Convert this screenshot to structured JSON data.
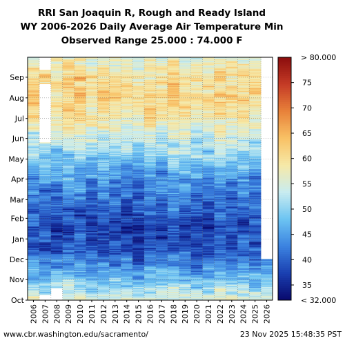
{
  "header": {
    "title_line1": "RRI San Joaquin R, Rough and Ready Island",
    "title_line2": "WY 2006-2026 Daily Average Air Temperature Min",
    "title_line3": "Observed Range 25.000 : 74.000 F"
  },
  "footer": {
    "source": "www.cbr.washington.edu/sacramento/",
    "timestamp": "23 Nov 2025 15:48:35 PST"
  },
  "chart_data": {
    "type": "heatmap",
    "title": "RRI San Joaquin R, Rough and Ready Island WY 2006-2026 Daily Average Air Temperature Min",
    "subtitle": "Observed Range 25.000 : 74.000 F",
    "xlabel": "",
    "ylabel": "",
    "x_categories": [
      "2006",
      "2007",
      "2008",
      "2009",
      "2010",
      "2011",
      "2012",
      "2013",
      "2014",
      "2015",
      "2016",
      "2017",
      "2018",
      "2019",
      "2020",
      "2021",
      "2022",
      "2023",
      "2024",
      "2025",
      "2026"
    ],
    "y_categories": [
      "Oct",
      "Nov",
      "Dec",
      "Jan",
      "Feb",
      "Mar",
      "Apr",
      "May",
      "Jun",
      "Jul",
      "Aug",
      "Sep"
    ],
    "y_order": "bottom-to-top",
    "monthly_typical_min_F": [
      52,
      45,
      39,
      38,
      40,
      43,
      47,
      52,
      57,
      61,
      61,
      59
    ],
    "colorbar": {
      "min": 32,
      "max": 80,
      "ticks": [
        35,
        40,
        45,
        50,
        55,
        60,
        65,
        70,
        75
      ],
      "min_label": "< 32.000",
      "max_label": "> 80.000",
      "colors": [
        "#08086b",
        "#1a3fb0",
        "#3b82e0",
        "#6cc3f2",
        "#c8ecf0",
        "#f6e9a8",
        "#f9c266",
        "#e8823a",
        "#c53b26",
        "#8b0d0d"
      ]
    },
    "missing_data": [
      {
        "year": "2007",
        "period": "Sep-Oct"
      },
      {
        "year": "2007",
        "period": "Jun-Aug"
      },
      {
        "year": "2008",
        "period": "early Oct"
      },
      {
        "year": "2026",
        "period": "Dec-Sep"
      }
    ],
    "grid": true,
    "legend": "colorbar-right"
  }
}
